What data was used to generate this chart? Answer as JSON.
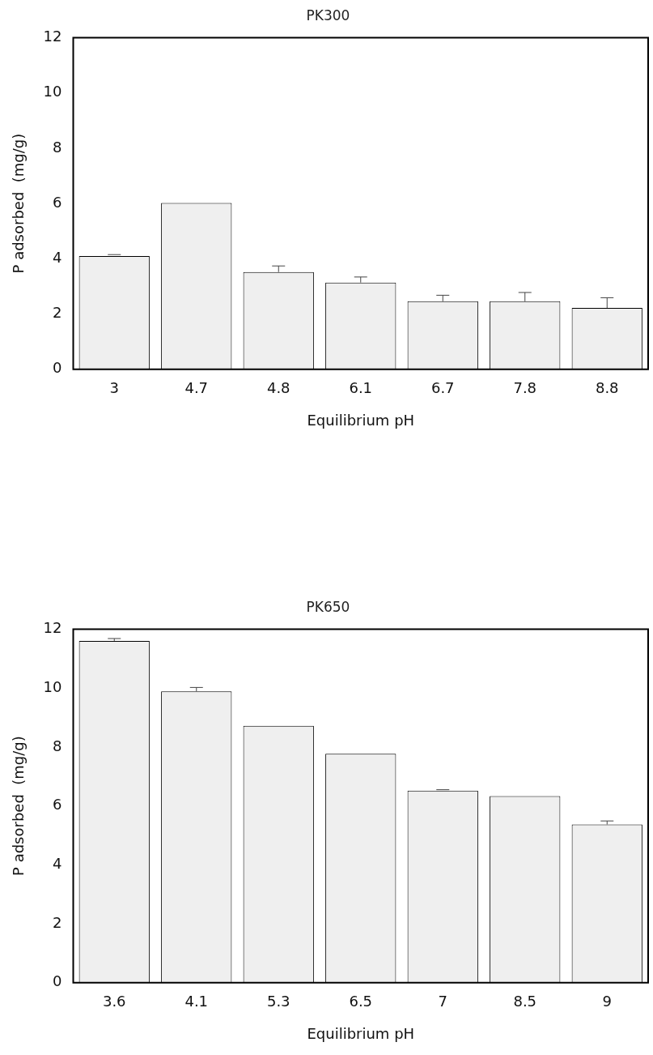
{
  "chart_data": [
    {
      "type": "bar",
      "title": "PK300",
      "xlabel": "Equilibrium pH",
      "ylabel": "P adsorbed  (mg/g)",
      "categories": [
        "3",
        "4.7",
        "4.8",
        "6.1",
        "6.7",
        "7.8",
        "8.8"
      ],
      "color": "#efefef",
      "values": [
        4.1,
        6.02,
        3.52,
        3.14,
        2.46,
        2.46,
        2.22
      ],
      "errors": [
        [
          4.1,
          4.15
        ],
        null,
        [
          3.52,
          3.74
        ],
        [
          3.14,
          3.34
        ],
        [
          2.46,
          2.68
        ],
        [
          2.46,
          2.78
        ],
        [
          2.22,
          2.59
        ]
      ],
      "ylim": [
        0,
        12
      ],
      "yticks": [
        0,
        2,
        4,
        6,
        8,
        10,
        12
      ],
      "grid": false,
      "legend": false
    },
    {
      "type": "bar",
      "title": "PK650",
      "xlabel": "Equilibrium pH",
      "ylabel": "P adsorbed  (mg/g)",
      "categories": [
        "3.6",
        "4.1",
        "5.3",
        "6.5",
        "7",
        "8.5",
        "9"
      ],
      "color": "#efefef",
      "values": [
        11.6,
        9.89,
        8.72,
        7.77,
        6.52,
        6.33,
        5.37
      ],
      "errors": [
        [
          11.6,
          11.68
        ],
        [
          9.89,
          10.02
        ],
        null,
        null,
        [
          6.52,
          6.55
        ],
        null,
        [
          5.37,
          5.49
        ]
      ],
      "ylim": [
        0,
        12
      ],
      "yticks": [
        0,
        2,
        4,
        6,
        8,
        10,
        12
      ],
      "grid": false,
      "legend": false
    }
  ]
}
